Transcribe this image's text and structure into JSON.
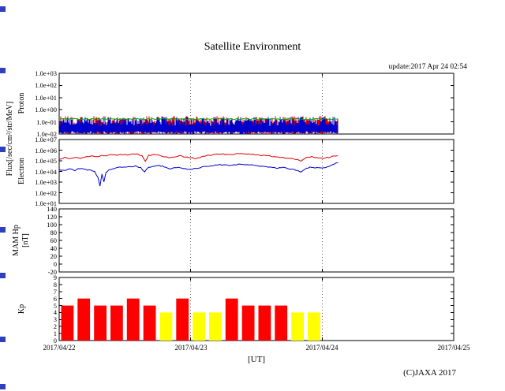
{
  "title": "Satellite Environment",
  "update_text": "update:2017 Apr 24 02:54",
  "footer": {
    "copyright": "(C)JAXA 2017"
  },
  "xaxis": {
    "label": "[UT]",
    "tick_labels": [
      "2017/04/22",
      "2017/04/23",
      "2017/04/24",
      "2017/04/25"
    ],
    "range_days": 3
  },
  "axis_titles": {
    "flux": "Flux[/sec/cm²/str/MeV]",
    "proton": "Proton",
    "electron": "Electron",
    "mam_hp_line1": "MAM Hp",
    "mam_hp_line2": "[nT]",
    "kp": "Kp"
  },
  "chart_data": [
    {
      "type": "line",
      "panel": "proton",
      "ylabel": "Proton",
      "yscale": "log",
      "ylim_log": [
        -2,
        3
      ],
      "ytick_labels": [
        "1.0e+03",
        "1.0e+02",
        "1.0e+01",
        "1.0e+00",
        "1.0e-01",
        "1.0e-02"
      ],
      "data_end_day": 2.12,
      "series": [
        {
          "name": "proton-red",
          "color": "#dd0000",
          "style": "noise_band",
          "log_min": -2.0,
          "log_max": -0.6,
          "spike_depth": 0.75
        },
        {
          "name": "proton-blue",
          "color": "#0000cc",
          "style": "noise_band",
          "log_min": -2.0,
          "log_max": -0.68,
          "spike_depth": 0.65
        },
        {
          "name": "proton-green",
          "color": "#00aa00",
          "style": "flat_line",
          "log_level": -0.77,
          "noise": 0.05
        }
      ]
    },
    {
      "type": "line",
      "panel": "electron",
      "ylabel": "Electron",
      "yscale": "log",
      "ylim_log": [
        1,
        7
      ],
      "ytick_labels": [
        "1.0e+07",
        "1.0e+06",
        "1.0e+05",
        "1.0e+04",
        "1.0e+03",
        "1.0e+02",
        "1.0e+01"
      ],
      "data_end_day": 2.12,
      "series": [
        {
          "name": "electron-red",
          "color": "#dd0000",
          "style": "line",
          "points_day_log10": [
            [
              0.0,
              5.1
            ],
            [
              0.04,
              5.3
            ],
            [
              0.08,
              5.2
            ],
            [
              0.12,
              5.35
            ],
            [
              0.16,
              5.25
            ],
            [
              0.2,
              5.35
            ],
            [
              0.24,
              5.45
            ],
            [
              0.28,
              5.35
            ],
            [
              0.32,
              5.5
            ],
            [
              0.36,
              5.45
            ],
            [
              0.4,
              5.6
            ],
            [
              0.44,
              5.5
            ],
            [
              0.48,
              5.6
            ],
            [
              0.52,
              5.55
            ],
            [
              0.56,
              5.65
            ],
            [
              0.6,
              5.6
            ],
            [
              0.63,
              5.45
            ],
            [
              0.655,
              4.95
            ],
            [
              0.68,
              5.5
            ],
            [
              0.72,
              5.6
            ],
            [
              0.76,
              5.55
            ],
            [
              0.8,
              5.4
            ],
            [
              0.84,
              5.25
            ],
            [
              0.88,
              5.4
            ],
            [
              0.92,
              5.45
            ],
            [
              0.96,
              5.35
            ],
            [
              1.0,
              5.3
            ],
            [
              1.04,
              5.2
            ],
            [
              1.08,
              5.35
            ],
            [
              1.12,
              5.5
            ],
            [
              1.16,
              5.55
            ],
            [
              1.2,
              5.6
            ],
            [
              1.25,
              5.62
            ],
            [
              1.3,
              5.58
            ],
            [
              1.35,
              5.65
            ],
            [
              1.4,
              5.68
            ],
            [
              1.45,
              5.62
            ],
            [
              1.5,
              5.58
            ],
            [
              1.55,
              5.5
            ],
            [
              1.6,
              5.45
            ],
            [
              1.65,
              5.38
            ],
            [
              1.7,
              5.32
            ],
            [
              1.75,
              5.22
            ],
            [
              1.8,
              5.12
            ],
            [
              1.84,
              5.02
            ],
            [
              1.88,
              5.28
            ],
            [
              1.92,
              5.38
            ],
            [
              1.96,
              5.3
            ],
            [
              2.0,
              5.26
            ],
            [
              2.05,
              5.32
            ],
            [
              2.09,
              5.45
            ],
            [
              2.12,
              5.5
            ]
          ]
        },
        {
          "name": "electron-blue",
          "color": "#0000cc",
          "style": "line",
          "points_day_log10": [
            [
              0.0,
              4.2
            ],
            [
              0.04,
              4.05
            ],
            [
              0.08,
              4.25
            ],
            [
              0.12,
              4.1
            ],
            [
              0.16,
              4.3
            ],
            [
              0.2,
              4.2
            ],
            [
              0.24,
              4.1
            ],
            [
              0.27,
              3.95
            ],
            [
              0.295,
              3.4
            ],
            [
              0.31,
              2.65
            ],
            [
              0.325,
              3.75
            ],
            [
              0.34,
              3.0
            ],
            [
              0.355,
              3.9
            ],
            [
              0.38,
              4.15
            ],
            [
              0.42,
              4.3
            ],
            [
              0.46,
              4.4
            ],
            [
              0.5,
              4.45
            ],
            [
              0.54,
              4.4
            ],
            [
              0.58,
              4.5
            ],
            [
              0.62,
              4.35
            ],
            [
              0.65,
              3.95
            ],
            [
              0.68,
              4.4
            ],
            [
              0.72,
              4.5
            ],
            [
              0.76,
              4.55
            ],
            [
              0.8,
              4.45
            ],
            [
              0.84,
              4.25
            ],
            [
              0.88,
              4.4
            ],
            [
              0.92,
              4.35
            ],
            [
              0.96,
              4.25
            ],
            [
              1.0,
              4.2
            ],
            [
              1.05,
              4.3
            ],
            [
              1.1,
              4.45
            ],
            [
              1.15,
              4.55
            ],
            [
              1.2,
              4.6
            ],
            [
              1.25,
              4.62
            ],
            [
              1.3,
              4.58
            ],
            [
              1.35,
              4.65
            ],
            [
              1.4,
              4.68
            ],
            [
              1.45,
              4.6
            ],
            [
              1.5,
              4.55
            ],
            [
              1.55,
              4.48
            ],
            [
              1.6,
              4.4
            ],
            [
              1.65,
              4.32
            ],
            [
              1.7,
              4.36
            ],
            [
              1.75,
              4.26
            ],
            [
              1.8,
              4.12
            ],
            [
              1.84,
              3.98
            ],
            [
              1.88,
              4.3
            ],
            [
              1.92,
              4.42
            ],
            [
              1.96,
              4.34
            ],
            [
              2.0,
              4.3
            ],
            [
              2.05,
              4.5
            ],
            [
              2.09,
              4.7
            ],
            [
              2.12,
              4.82
            ]
          ]
        }
      ]
    },
    {
      "type": "line",
      "panel": "mam_hp",
      "ylabel": "MAM Hp [nT]",
      "yscale": "linear",
      "ylim": [
        -20,
        140
      ],
      "ytick_labels": [
        "140",
        "120",
        "100",
        "80",
        "60",
        "40",
        "20",
        "0",
        "-20"
      ],
      "series": []
    },
    {
      "type": "bar",
      "panel": "kp",
      "ylabel": "Kp",
      "ylim": [
        0,
        9
      ],
      "ytick_labels": [
        "9",
        "8",
        "7",
        "6",
        "5",
        "4",
        "3",
        "2",
        "1",
        "0"
      ],
      "bar_interval_hours": 3,
      "values": [
        5,
        6,
        5,
        5,
        6,
        5,
        4,
        6,
        4,
        4,
        6,
        5,
        5,
        5,
        4,
        4
      ],
      "color_rule": {
        "red_min": 5,
        "red": "#ff0000",
        "yellow": "#ffff00"
      }
    }
  ]
}
